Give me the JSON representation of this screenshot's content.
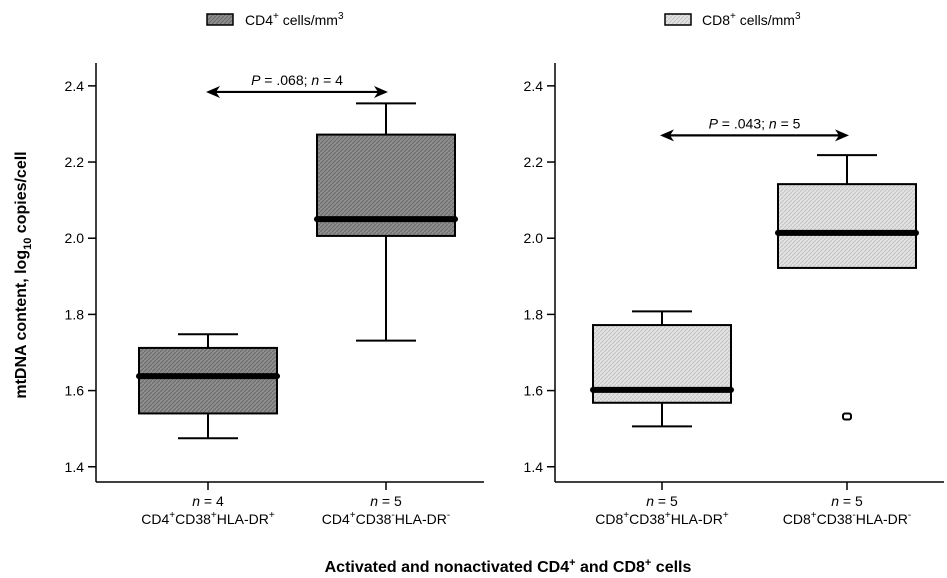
{
  "legend": [
    {
      "base": "CD4",
      "sup": "+",
      "suffix": " cells/mm",
      "unit_sup": "3",
      "color": "#8e8e8e"
    },
    {
      "base": "CD8",
      "sup": "+",
      "suffix": " cells/mm",
      "unit_sup": "3",
      "color": "#dedede"
    }
  ],
  "yaxis": {
    "title_main": "mtDNA content, log",
    "title_sub": "10",
    "title_end": " copies/cell"
  },
  "xaxis": {
    "title_main": "Activated and nonactivated CD4",
    "sup1": "+",
    "title_mid": " and CD8",
    "sup2": "+",
    "title_end": " cells"
  },
  "chart_data": [
    {
      "type": "box",
      "panel": "CD4",
      "ylim": [
        1.36,
        2.46
      ],
      "yticks": [
        1.4,
        1.6,
        1.8,
        2.0,
        2.2,
        2.4
      ],
      "ytick_labels": [
        "1.4",
        "1.6",
        "1.8",
        "2.0",
        "2.2",
        "2.4"
      ],
      "color": "#8e8e8e",
      "categories": [
        {
          "n_label": "n = 4",
          "label_parts": [
            [
              "CD4",
              ""
            ],
            [
              "+",
              "sup"
            ],
            [
              "CD38",
              ""
            ],
            [
              "+",
              "sup"
            ],
            [
              "HLA-DR",
              ""
            ],
            [
              "+",
              "sup"
            ]
          ],
          "min": 1.475,
          "q1": 1.54,
          "median": 1.638,
          "q3": 1.712,
          "max": 1.748,
          "outliers": []
        },
        {
          "n_label": "n = 5",
          "label_parts": [
            [
              "CD4",
              ""
            ],
            [
              "+",
              "sup"
            ],
            [
              "CD38",
              ""
            ],
            [
              "-",
              "sup"
            ],
            [
              "HLA-DR",
              ""
            ],
            [
              "-",
              "sup"
            ]
          ],
          "min": 1.731,
          "q1": 2.006,
          "median": 2.05,
          "q3": 2.272,
          "max": 2.354,
          "outliers": []
        }
      ],
      "annotation": {
        "text": "P = .068; n = 4",
        "y": 2.384,
        "from": 0,
        "to": 1
      }
    },
    {
      "type": "box",
      "panel": "CD8",
      "ylim": [
        1.36,
        2.46
      ],
      "yticks": [
        1.4,
        1.6,
        1.8,
        2.0,
        2.2,
        2.4
      ],
      "ytick_labels": [
        "1.4",
        "1.6",
        "1.8",
        "2.0",
        "2.2",
        "2.4"
      ],
      "color": "#dedede",
      "categories": [
        {
          "n_label": "n = 5",
          "label_parts": [
            [
              "CD8",
              ""
            ],
            [
              "+",
              "sup"
            ],
            [
              "CD38",
              ""
            ],
            [
              "+",
              "sup"
            ],
            [
              "HLA-DR",
              ""
            ],
            [
              "+",
              "sup"
            ]
          ],
          "min": 1.506,
          "q1": 1.568,
          "median": 1.602,
          "q3": 1.772,
          "max": 1.808,
          "outliers": []
        },
        {
          "n_label": "n = 5",
          "label_parts": [
            [
              "CD8",
              ""
            ],
            [
              "+",
              "sup"
            ],
            [
              "CD38",
              ""
            ],
            [
              "-",
              "sup"
            ],
            [
              "HLA-DR",
              ""
            ],
            [
              "-",
              "sup"
            ]
          ],
          "min": 1.922,
          "q1": 1.922,
          "median": 2.014,
          "q3": 2.142,
          "max": 2.218,
          "outliers": [
            1.532
          ]
        }
      ],
      "annotation": {
        "text": "P = .043; n = 5",
        "y": 2.27,
        "from": 0,
        "to": 1
      }
    }
  ]
}
